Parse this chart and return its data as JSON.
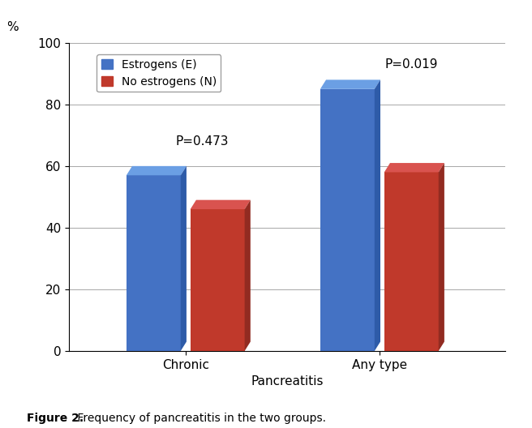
{
  "categories": [
    "Chronic",
    "Any type"
  ],
  "estrogens_values": [
    57,
    85
  ],
  "no_estrogens_values": [
    46,
    58
  ],
  "bar_color_estrogens": "#4472C4",
  "bar_color_estrogens_top": "#6B9FE4",
  "bar_color_estrogens_side": "#2E5BA8",
  "bar_color_no_estrogens": "#C0392B",
  "bar_color_no_estrogens_top": "#D9534F",
  "bar_color_no_estrogens_side": "#922B21",
  "ylabel": "%",
  "xlabel": "Pancreatitis",
  "ylim": [
    0,
    100
  ],
  "yticks": [
    0,
    20,
    40,
    60,
    80,
    100
  ],
  "legend_labels": [
    "Estrogens (E)",
    "No estrogens (N)"
  ],
  "p_values": [
    "P=0.473",
    "P=0.019"
  ],
  "axis_fontsize": 11,
  "tick_fontsize": 11,
  "legend_fontsize": 10,
  "bar_width": 0.28,
  "bar_depth": 0.07,
  "figure_caption_bold": "Figure 2.",
  "figure_caption_rest": " Frequency of pancreatitis in the two groups.",
  "background_color": "#FFFFFF",
  "grid_color": "#999999",
  "floor_color": "#E8E8E8",
  "wall_color": "#F0F0F0"
}
